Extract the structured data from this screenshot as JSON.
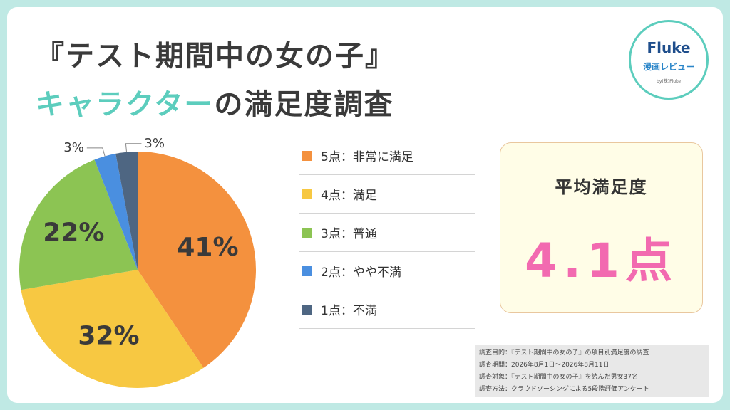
{
  "title": {
    "line1": "『テスト期間中の女の子』",
    "line2_accent": "キャラクター",
    "line2_rest": "の満足度調査"
  },
  "logo": {
    "brand": "Fluke",
    "subtitle": "漫画レビュー",
    "byline": "by(株)Fluke"
  },
  "chart_data": {
    "type": "pie",
    "categories": [
      "5点：非常に満足",
      "4点：満足",
      "3点：普通",
      "2点：やや不満",
      "1点：不満"
    ],
    "values": [
      41,
      32,
      22,
      3,
      3
    ],
    "labels": [
      "41%",
      "32%",
      "22%",
      "3%",
      "3%"
    ],
    "colors": [
      "#f4913e",
      "#f7c842",
      "#8cc453",
      "#4a8fe0",
      "#4e6682"
    ],
    "legend_placement": "right"
  },
  "average": {
    "title": "平均満足度",
    "value": "4.1点"
  },
  "survey_notes": [
    "調査目的：『テスト期間中の女の子』の項目別満足度の調査",
    "調査期間：2026年8月1日～2026年8月11日",
    "調査対象：『テスト期間中の女の子』を読んだ男女37名",
    "調査方法：クラウドソーシングによる5段階評価アンケート"
  ]
}
